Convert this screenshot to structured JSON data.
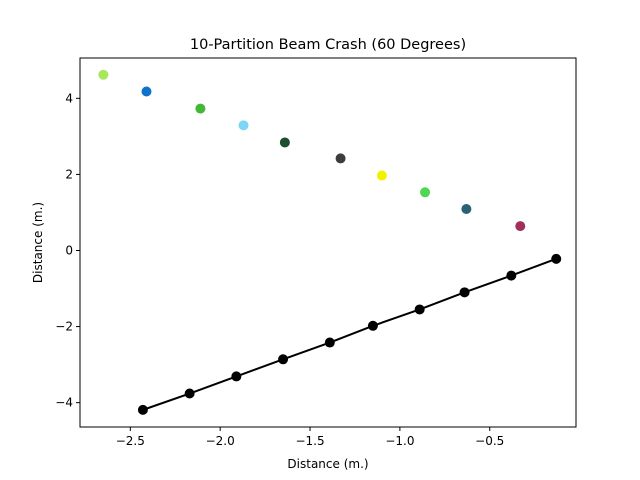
{
  "chart_data": {
    "type": "scatter",
    "title": "10-Partition Beam Crash (60 Degrees)",
    "xlabel": "Distance (m.)",
    "ylabel": "Distance (m.)",
    "xlim": [
      -2.78,
      -0.02
    ],
    "ylim": [
      -4.64,
      5.06
    ],
    "xticks": [
      -2.5,
      -2.0,
      -1.5,
      -1.0,
      -0.5
    ],
    "xtick_labels": [
      "−2.5",
      "−2.0",
      "−1.5",
      "−1.0",
      "−0.5"
    ],
    "yticks": [
      -4,
      -2,
      0,
      2,
      4
    ],
    "ytick_labels": [
      "−4",
      "−2",
      "0",
      "2",
      "4"
    ],
    "grid": false,
    "series": [
      {
        "style": "scatter",
        "points": [
          {
            "x": -2.65,
            "y": 4.62,
            "color": "#a6e75c"
          },
          {
            "x": -2.41,
            "y": 4.18,
            "color": "#1172cb"
          },
          {
            "x": -2.11,
            "y": 3.73,
            "color": "#44b738"
          },
          {
            "x": -1.87,
            "y": 3.29,
            "color": "#7dd6f3"
          },
          {
            "x": -1.64,
            "y": 2.84,
            "color": "#1c4f30"
          },
          {
            "x": -1.33,
            "y": 2.42,
            "color": "#3d3d3d"
          },
          {
            "x": -1.1,
            "y": 1.97,
            "color": "#f2f200"
          },
          {
            "x": -0.86,
            "y": 1.53,
            "color": "#4fd653"
          },
          {
            "x": -0.63,
            "y": 1.09,
            "color": "#296274"
          },
          {
            "x": -0.33,
            "y": 0.64,
            "color": "#a12f5a"
          }
        ]
      },
      {
        "style": "line-markers",
        "color": "#000000",
        "points": [
          {
            "x": -2.43,
            "y": -4.19
          },
          {
            "x": -2.17,
            "y": -3.76
          },
          {
            "x": -1.91,
            "y": -3.31
          },
          {
            "x": -1.65,
            "y": -2.86
          },
          {
            "x": -1.39,
            "y": -2.42
          },
          {
            "x": -1.15,
            "y": -1.98
          },
          {
            "x": -0.89,
            "y": -1.55
          },
          {
            "x": -0.64,
            "y": -1.1
          },
          {
            "x": -0.38,
            "y": -0.66
          },
          {
            "x": -0.13,
            "y": -0.22
          }
        ]
      }
    ]
  }
}
